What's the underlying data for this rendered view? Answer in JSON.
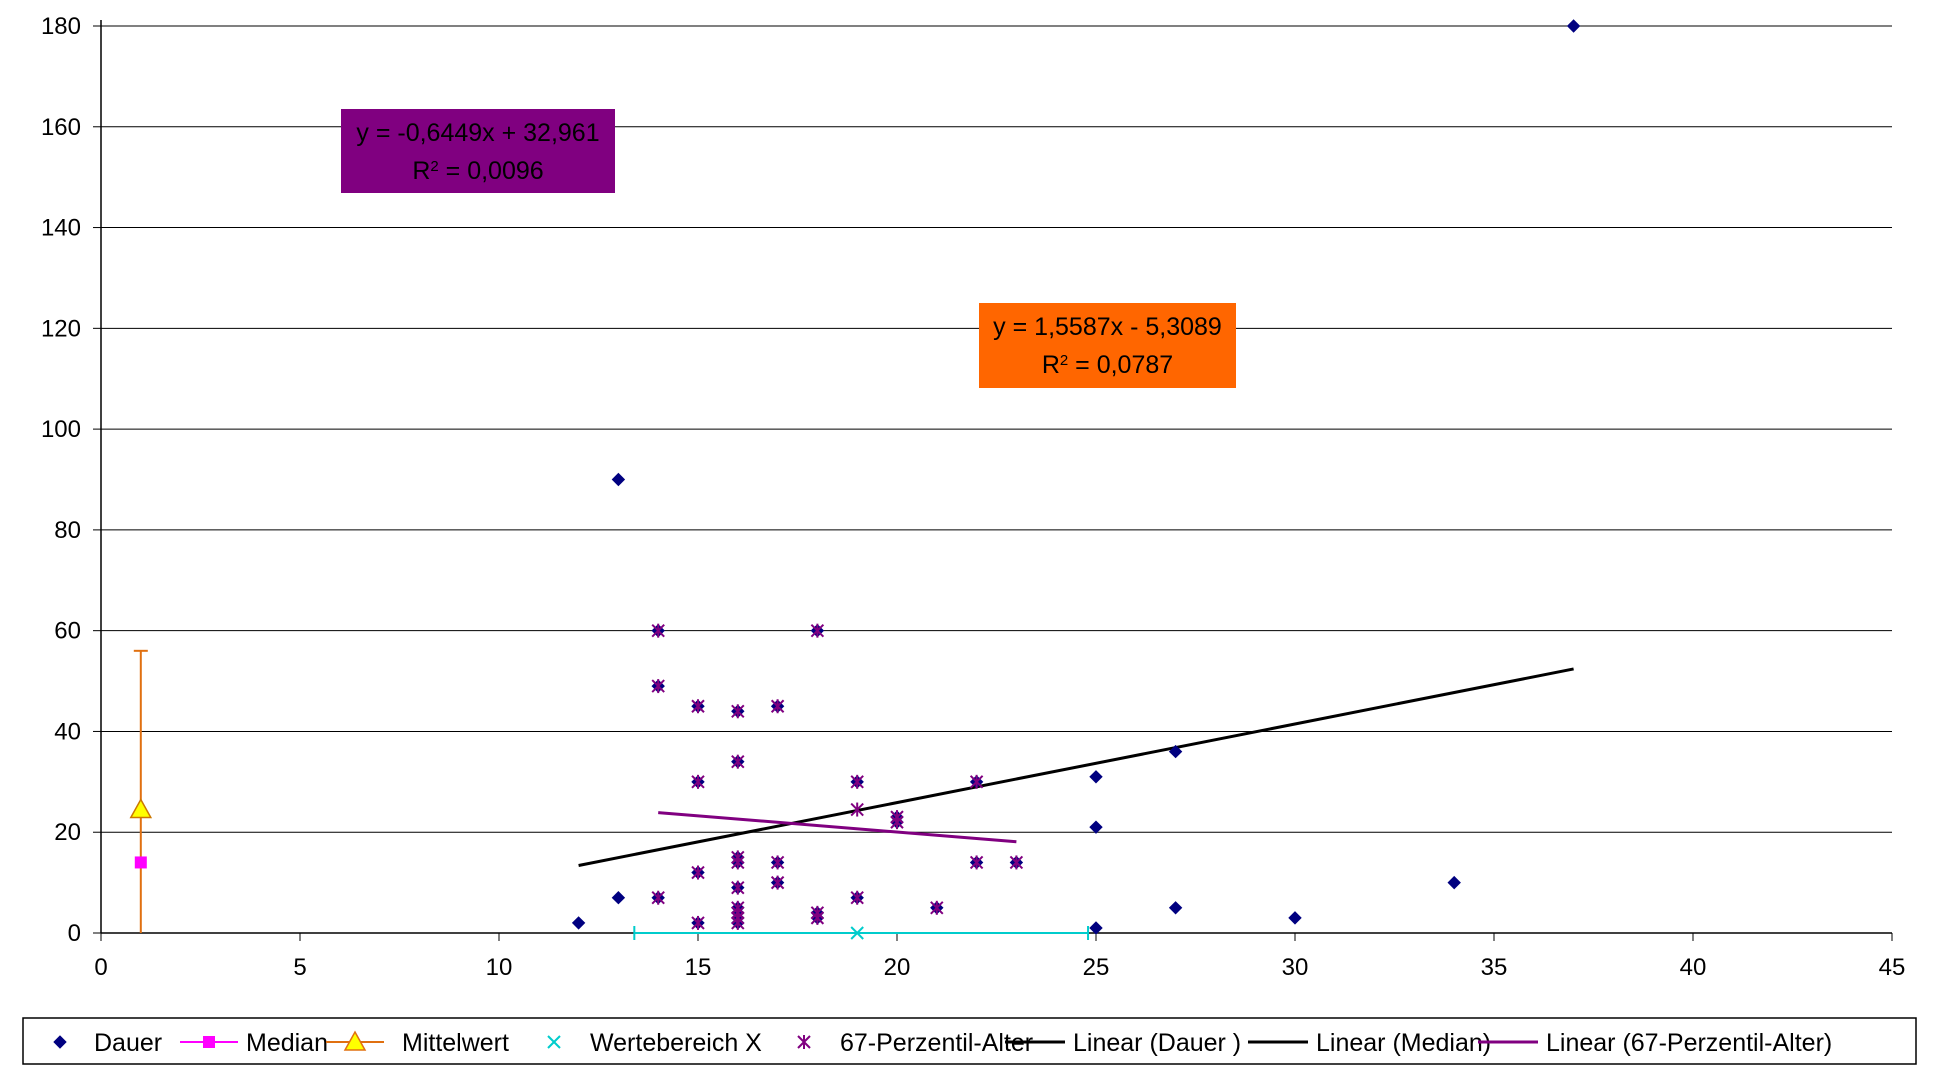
{
  "chart_data": {
    "type": "scatter",
    "title": "",
    "xlabel": "",
    "ylabel": "",
    "xlim": [
      0,
      45
    ],
    "ylim": [
      0,
      180
    ],
    "x_ticks": [
      "0",
      "5",
      "10",
      "15",
      "20",
      "25",
      "30",
      "35",
      "40",
      "45"
    ],
    "y_ticks": [
      "0",
      "20",
      "40",
      "60",
      "80",
      "100",
      "120",
      "140",
      "160",
      "180"
    ],
    "grid": "horizontal",
    "legend_position": "bottom",
    "series": [
      {
        "name": "Dauer",
        "marker": "diamond",
        "color": "#000080",
        "points": [
          [
            12,
            2
          ],
          [
            13,
            90
          ],
          [
            13,
            7
          ],
          [
            14,
            60
          ],
          [
            14,
            49
          ],
          [
            14,
            7
          ],
          [
            15,
            45
          ],
          [
            15,
            30
          ],
          [
            15,
            12
          ],
          [
            15,
            2
          ],
          [
            16,
            44
          ],
          [
            16,
            34
          ],
          [
            16,
            15
          ],
          [
            16,
            14
          ],
          [
            16,
            9
          ],
          [
            16,
            5
          ],
          [
            16,
            4
          ],
          [
            16,
            3
          ],
          [
            16,
            2
          ],
          [
            17,
            45
          ],
          [
            17,
            14
          ],
          [
            17,
            10
          ],
          [
            18,
            60
          ],
          [
            18,
            4
          ],
          [
            18,
            3
          ],
          [
            19,
            30
          ],
          [
            19,
            7
          ],
          [
            20,
            23
          ],
          [
            20,
            22
          ],
          [
            21,
            5
          ],
          [
            22,
            30
          ],
          [
            22,
            14
          ],
          [
            23,
            14
          ],
          [
            25,
            31
          ],
          [
            25,
            21
          ],
          [
            25,
            1
          ],
          [
            27,
            36
          ],
          [
            27,
            5
          ],
          [
            30,
            3
          ],
          [
            34,
            10
          ],
          [
            37,
            180
          ]
        ]
      },
      {
        "name": "Median",
        "marker": "square",
        "color": "#ff00ff",
        "points": [
          [
            1,
            14
          ]
        ]
      },
      {
        "name": "Mittelwert",
        "marker": "triangle",
        "color": "#ffff00",
        "edge_color": "#cc7700",
        "points": [
          [
            1,
            24.5
          ]
        ],
        "error_bar_y": [
          0,
          56
        ],
        "error_bar_color": "#e07010"
      },
      {
        "name": "Wertebereich X",
        "marker": "x",
        "color": "#00cccc",
        "points": [
          [
            19,
            0
          ]
        ],
        "error_bar_x": [
          13.4,
          24.8
        ]
      },
      {
        "name": "67-Perzentil-Alter",
        "marker": "star",
        "color": "#800080",
        "points": [
          [
            14,
            60
          ],
          [
            14,
            49
          ],
          [
            14,
            7
          ],
          [
            15,
            45
          ],
          [
            15,
            30
          ],
          [
            15,
            12
          ],
          [
            15,
            2
          ],
          [
            16,
            44
          ],
          [
            16,
            34
          ],
          [
            16,
            15
          ],
          [
            16,
            14
          ],
          [
            16,
            9
          ],
          [
            16,
            5
          ],
          [
            16,
            4
          ],
          [
            16,
            3
          ],
          [
            16,
            2
          ],
          [
            17,
            45
          ],
          [
            17,
            14
          ],
          [
            17,
            10
          ],
          [
            18,
            60
          ],
          [
            18,
            4
          ],
          [
            18,
            3
          ],
          [
            19,
            30
          ],
          [
            19,
            24.5
          ],
          [
            19,
            7
          ],
          [
            20,
            23
          ],
          [
            20,
            22
          ],
          [
            21,
            5
          ],
          [
            22,
            30
          ],
          [
            22,
            14
          ],
          [
            23,
            14
          ]
        ]
      }
    ],
    "trendlines": [
      {
        "name": "Linear (Dauer )",
        "color": "#000000",
        "x": [
          12,
          37
        ],
        "y": [
          13.4,
          52.4
        ]
      },
      {
        "name": "Linear (Median)",
        "color": "#000000",
        "x": [],
        "y": []
      },
      {
        "name": "Linear (67-Perzentil-Alter)",
        "color": "#800080",
        "x": [
          14,
          23
        ],
        "y": [
          23.9,
          18.1
        ]
      }
    ],
    "annotations": [
      {
        "line1": "y = -0,6449x + 32,961",
        "line2_prefix": "R",
        "line2_sup": "2",
        "line2_suffix": " = 0,0096",
        "bg": "#800080"
      },
      {
        "line1": "y = 1,5587x - 5,3089",
        "line2_prefix": "R",
        "line2_sup": "2",
        "line2_suffix": " = 0,0787",
        "bg": "#ff6600"
      }
    ],
    "legend": [
      {
        "label": "Dauer",
        "kind": "diamond",
        "color": "#000080"
      },
      {
        "label": "Median",
        "kind": "line-square",
        "color": "#ff00ff"
      },
      {
        "label": "Mittelwert",
        "kind": "line-triangle",
        "color": "#e07010"
      },
      {
        "label": "Wertebereich X",
        "kind": "x",
        "color": "#00cccc"
      },
      {
        "label": "67-Perzentil-Alter",
        "kind": "star",
        "color": "#800080"
      },
      {
        "label": "Linear (Dauer )",
        "kind": "line",
        "color": "#000000"
      },
      {
        "label": "Linear (Median)",
        "kind": "line",
        "color": "#000000"
      },
      {
        "label": "Linear (67-Perzentil-Alter)",
        "kind": "line",
        "color": "#800080"
      }
    ]
  }
}
